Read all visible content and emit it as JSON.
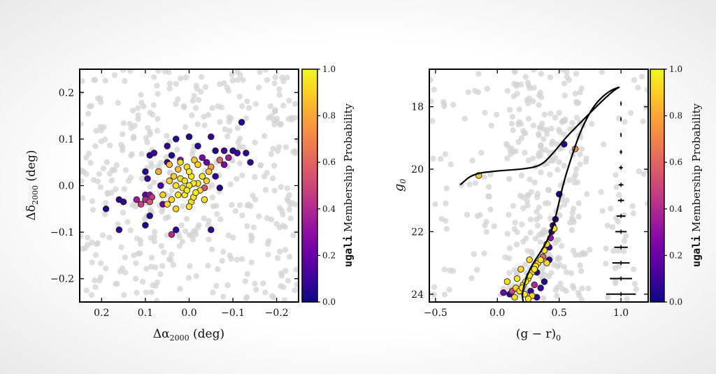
{
  "chart_data": [
    {
      "type": "scatter",
      "name": "spatial",
      "xlabel_main": "Δα",
      "xlabel_sub": "2000",
      "xlabel_unit": " (deg)",
      "ylabel_main": "Δδ",
      "ylabel_sub": "2000",
      "ylabel_unit": " (deg)",
      "xlim": [
        0.25,
        -0.25
      ],
      "ylim": [
        -0.25,
        0.25
      ],
      "xticks": [
        {
          "v": 0.2,
          "label": "0.2"
        },
        {
          "v": 0.1,
          "label": "0.1"
        },
        {
          "v": 0.0,
          "label": "0.0"
        },
        {
          "v": -0.1,
          "label": "−0.1"
        },
        {
          "v": -0.2,
          "label": "−0.2"
        }
      ],
      "yticks": [
        {
          "v": 0.2,
          "label": "0.2"
        },
        {
          "v": 0.1,
          "label": "0.1"
        },
        {
          "v": 0.0,
          "label": "0.0"
        },
        {
          "v": -0.1,
          "label": "−0.1"
        },
        {
          "v": -0.2,
          "label": "−0.2"
        }
      ],
      "members": [
        [
          0.0,
          0.0,
          0.97
        ],
        [
          0.01,
          0.01,
          0.95
        ],
        [
          -0.01,
          0.005,
          0.96
        ],
        [
          0.005,
          -0.01,
          0.98
        ],
        [
          -0.005,
          0.02,
          0.95
        ],
        [
          0.015,
          -0.005,
          0.94
        ],
        [
          -0.015,
          -0.015,
          0.96
        ],
        [
          0.02,
          0.015,
          0.93
        ],
        [
          -0.02,
          0.005,
          0.95
        ],
        [
          0.0,
          0.03,
          0.97
        ],
        [
          0.01,
          -0.02,
          0.96
        ],
        [
          -0.01,
          -0.025,
          0.94
        ],
        [
          0.025,
          -0.02,
          0.95
        ],
        [
          -0.025,
          -0.01,
          0.93
        ],
        [
          0.03,
          0.0,
          0.96
        ],
        [
          -0.03,
          0.02,
          0.95
        ],
        [
          0.005,
          0.04,
          0.92
        ],
        [
          -0.005,
          -0.035,
          0.93
        ],
        [
          0.035,
          0.02,
          0.9
        ],
        [
          -0.035,
          -0.03,
          0.94
        ],
        [
          0.04,
          -0.03,
          0.92
        ],
        [
          -0.04,
          0.01,
          0.91
        ],
        [
          0.045,
          0.01,
          0.9
        ],
        [
          -0.045,
          0.03,
          0.88
        ],
        [
          0.05,
          -0.04,
          0.93
        ],
        [
          0.06,
          -0.02,
          0.9
        ],
        [
          0.02,
          0.05,
          0.92
        ],
        [
          -0.02,
          0.045,
          0.9
        ],
        [
          0.03,
          -0.05,
          0.91
        ],
        [
          0.0,
          -0.045,
          0.95
        ],
        [
          0.07,
          0.03,
          0.82
        ],
        [
          -0.05,
          0.04,
          0.76
        ],
        [
          0.025,
          0.035,
          0.86
        ],
        [
          -0.012,
          0.055,
          0.88
        ],
        [
          0.045,
          0.045,
          0.84
        ],
        [
          0.1,
          -0.03,
          0.4
        ],
        [
          0.09,
          -0.035,
          0.55
        ],
        [
          0.085,
          -0.025,
          0.45
        ],
        [
          0.12,
          -0.03,
          0.35
        ],
        [
          0.11,
          -0.04,
          0.48
        ],
        [
          0.09,
          -0.02,
          0.3
        ],
        [
          0.03,
          0.1,
          0.06
        ],
        [
          0.0,
          0.105,
          0.05
        ],
        [
          -0.05,
          0.105,
          0.08
        ],
        [
          -0.1,
          0.075,
          0.06
        ],
        [
          -0.11,
          0.07,
          0.1
        ],
        [
          -0.13,
          0.07,
          0.08
        ],
        [
          -0.14,
          0.05,
          0.07
        ],
        [
          -0.12,
          0.136,
          0.05
        ],
        [
          -0.06,
          0.075,
          0.05
        ],
        [
          -0.08,
          0.075,
          0.12
        ],
        [
          -0.09,
          0.06,
          0.35
        ],
        [
          -0.07,
          0.055,
          0.6
        ],
        [
          -0.08,
          0.045,
          0.25
        ],
        [
          0.08,
          0.07,
          0.12
        ],
        [
          0.09,
          0.065,
          0.06
        ],
        [
          0.04,
          0.065,
          0.05
        ],
        [
          0.02,
          0.055,
          0.3
        ],
        [
          0.05,
          0.05,
          0.08
        ],
        [
          -0.04,
          0.05,
          0.2
        ],
        [
          0.1,
          0.03,
          0.05
        ],
        [
          0.095,
          0.015,
          0.1
        ],
        [
          0.1,
          -0.02,
          0.18
        ],
        [
          0.09,
          -0.065,
          0.06
        ],
        [
          0.1,
          -0.085,
          0.04
        ],
        [
          0.19,
          -0.05,
          0.05
        ],
        [
          0.16,
          -0.03,
          0.06
        ],
        [
          0.15,
          -0.035,
          0.08
        ],
        [
          0.16,
          -0.095,
          0.07
        ],
        [
          0.03,
          -0.095,
          0.07
        ],
        [
          -0.05,
          -0.095,
          0.06
        ],
        [
          -0.06,
          0.02,
          0.08
        ],
        [
          -0.07,
          -0.005,
          0.05
        ],
        [
          -0.035,
          -0.005,
          0.55
        ],
        [
          0.04,
          -0.105,
          0.4
        ],
        [
          0.06,
          -0.04,
          0.2
        ],
        [
          0.05,
          0.085,
          0.07
        ],
        [
          -0.02,
          0.085,
          0.06
        ],
        [
          -0.03,
          0.06,
          0.25
        ],
        [
          0.065,
          0.0,
          0.12
        ]
      ]
    },
    {
      "type": "scatter",
      "name": "cmd",
      "xlabel": "(g − r)",
      "xlabel_sub": "0",
      "ylabel": "g",
      "ylabel_sub": "0",
      "xlim": [
        -0.55,
        1.22
      ],
      "ylim": [
        24.25,
        16.8
      ],
      "xticks": [
        {
          "v": -0.5,
          "label": "−0.5"
        },
        {
          "v": 0.0,
          "label": "0.0"
        },
        {
          "v": 0.5,
          "label": "0.5"
        },
        {
          "v": 1.0,
          "label": "1.0"
        }
      ],
      "yticks": [
        {
          "v": 18,
          "label": "18"
        },
        {
          "v": 20,
          "label": "20"
        },
        {
          "v": 22,
          "label": "22"
        },
        {
          "v": 24,
          "label": "24"
        }
      ],
      "isochrone": [
        [
          -0.3,
          20.5
        ],
        [
          -0.2,
          20.15
        ],
        [
          0.0,
          20.05
        ],
        [
          0.2,
          20.0
        ],
        [
          0.35,
          19.9
        ],
        [
          0.45,
          19.5
        ],
        [
          0.55,
          19.0
        ],
        [
          0.7,
          18.4
        ],
        [
          0.85,
          17.8
        ],
        [
          0.95,
          17.45
        ],
        [
          1.0,
          17.35
        ],
        [
          0.9,
          17.5
        ],
        [
          0.78,
          17.95
        ],
        [
          0.68,
          18.7
        ],
        [
          0.6,
          19.6
        ],
        [
          0.53,
          20.5
        ],
        [
          0.48,
          21.4
        ],
        [
          0.44,
          22.0
        ],
        [
          0.36,
          22.6
        ],
        [
          0.29,
          23.0
        ],
        [
          0.24,
          23.4
        ],
        [
          0.21,
          23.8
        ],
        [
          0.2,
          24.1
        ],
        [
          0.22,
          24.4
        ]
      ],
      "members": [
        [
          -0.15,
          20.2,
          0.88
        ],
        [
          0.63,
          19.35,
          0.72
        ],
        [
          0.54,
          19.2,
          0.05
        ],
        [
          0.5,
          20.8,
          0.03
        ],
        [
          0.47,
          21.6,
          0.06
        ],
        [
          0.45,
          21.8,
          0.08
        ],
        [
          0.44,
          22.0,
          0.1
        ],
        [
          0.46,
          21.9,
          0.95
        ],
        [
          0.43,
          22.2,
          0.3
        ],
        [
          0.4,
          22.4,
          0.92
        ],
        [
          0.38,
          22.6,
          0.94
        ],
        [
          0.42,
          22.5,
          0.07
        ],
        [
          0.37,
          22.8,
          0.6
        ],
        [
          0.35,
          22.9,
          0.95
        ],
        [
          0.33,
          23.0,
          0.93
        ],
        [
          0.31,
          23.1,
          0.94
        ],
        [
          0.3,
          23.2,
          0.96
        ],
        [
          0.28,
          23.3,
          0.92
        ],
        [
          0.26,
          23.4,
          0.95
        ],
        [
          0.32,
          23.3,
          0.06
        ],
        [
          0.25,
          23.5,
          0.94
        ],
        [
          0.23,
          23.6,
          0.96
        ],
        [
          0.21,
          23.7,
          0.93
        ],
        [
          0.2,
          23.8,
          0.95
        ],
        [
          0.18,
          23.9,
          0.94
        ],
        [
          0.22,
          24.0,
          0.97
        ],
        [
          0.15,
          23.8,
          0.9
        ],
        [
          0.12,
          23.9,
          0.5
        ],
        [
          0.1,
          24.0,
          0.06
        ],
        [
          0.05,
          23.95,
          0.2
        ],
        [
          0.08,
          23.6,
          0.93
        ],
        [
          0.27,
          23.9,
          0.08
        ],
        [
          0.3,
          23.7,
          0.4
        ],
        [
          0.35,
          23.8,
          0.1
        ],
        [
          0.28,
          24.05,
          0.91
        ],
        [
          0.32,
          24.1,
          0.07
        ],
        [
          0.25,
          24.15,
          0.95
        ],
        [
          0.14,
          24.1,
          0.94
        ],
        [
          0.38,
          23.6,
          0.05
        ],
        [
          0.4,
          23.0,
          0.92
        ],
        [
          0.42,
          22.9,
          0.08
        ],
        [
          0.19,
          23.2,
          0.92
        ],
        [
          0.16,
          23.5,
          0.95
        ],
        [
          0.26,
          22.9,
          0.93
        ]
      ],
      "errorbars": [
        [
          1.0,
          17.9,
          0.0
        ],
        [
          1.0,
          18.4,
          0.0
        ],
        [
          1.0,
          18.9,
          0.005
        ],
        [
          1.0,
          19.45,
          0.01
        ],
        [
          1.0,
          19.95,
          0.015
        ],
        [
          1.0,
          20.5,
          0.02
        ],
        [
          1.0,
          21.0,
          0.025
        ],
        [
          1.0,
          21.5,
          0.035
        ],
        [
          1.0,
          22.0,
          0.045
        ],
        [
          1.0,
          22.5,
          0.055
        ],
        [
          1.0,
          23.0,
          0.07
        ],
        [
          1.0,
          23.5,
          0.09
        ],
        [
          1.0,
          24.0,
          0.12
        ]
      ]
    }
  ],
  "colorbar": {
    "label_prefix": "ugali",
    "label_suffix": " Membership Probability",
    "ticks": [
      "0.0",
      "0.2",
      "0.4",
      "0.6",
      "0.8",
      "1.0"
    ],
    "colors": [
      "#0d0887",
      "#3d049b",
      "#6a00a8",
      "#8f0da4",
      "#b12a90",
      "#cc4778",
      "#e16462",
      "#f2844b",
      "#fca636",
      "#fcce25",
      "#f0f921"
    ]
  }
}
